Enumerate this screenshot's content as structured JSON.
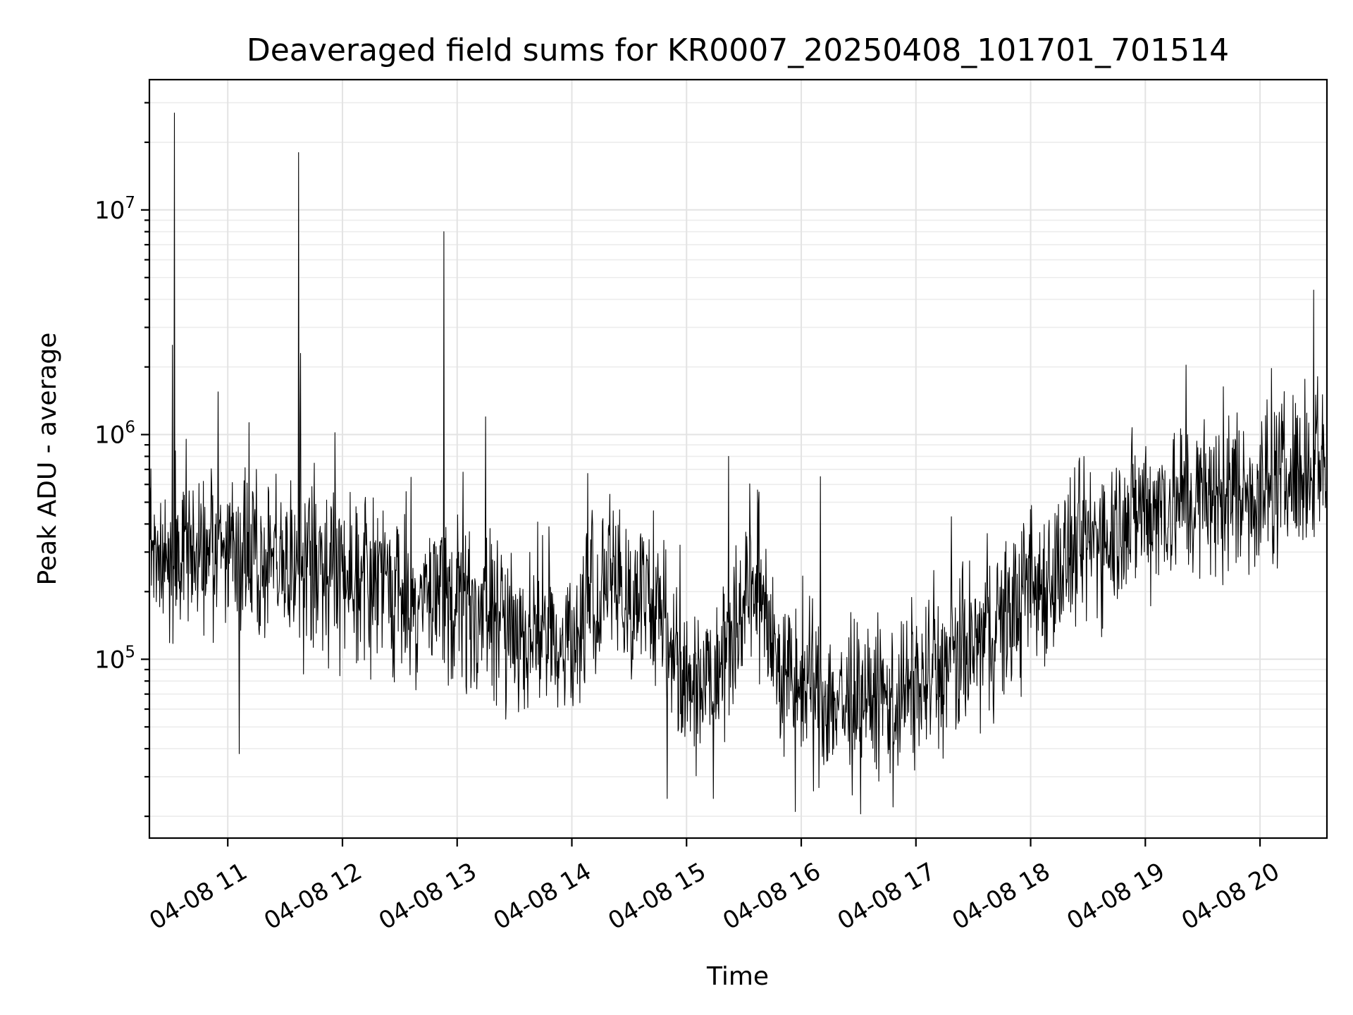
{
  "chart_data": {
    "type": "line",
    "title": "Deaveraged field sums for KR0007_20250408_101701_701514",
    "xlabel": "Time",
    "ylabel": "Peak ADU - average",
    "y_scale": "log",
    "grid": true,
    "grid_minor": true,
    "line_color": "#000000",
    "xlim": [
      "04-08 10:19",
      "04-08 20:35"
    ],
    "ylim": [
      16000,
      38000000
    ],
    "x_ticks": [
      {
        "label": "04-08 11",
        "time": "04-08 11:00"
      },
      {
        "label": "04-08 12",
        "time": "04-08 12:00"
      },
      {
        "label": "04-08 13",
        "time": "04-08 13:00"
      },
      {
        "label": "04-08 14",
        "time": "04-08 14:00"
      },
      {
        "label": "04-08 15",
        "time": "04-08 15:00"
      },
      {
        "label": "04-08 16",
        "time": "04-08 16:00"
      },
      {
        "label": "04-08 17",
        "time": "04-08 17:00"
      },
      {
        "label": "04-08 18",
        "time": "04-08 18:00"
      },
      {
        "label": "04-08 19",
        "time": "04-08 19:00"
      },
      {
        "label": "04-08 20",
        "time": "04-08 20:00"
      }
    ],
    "y_ticks": [
      {
        "base": "10",
        "exp": "5",
        "value": 100000
      },
      {
        "base": "10",
        "exp": "6",
        "value": 1000000
      },
      {
        "base": "10",
        "exp": "7",
        "value": 10000000
      }
    ],
    "baseline": [
      {
        "time": "04-08 10:19",
        "value": 280000
      },
      {
        "time": "04-08 11:00",
        "value": 290000
      },
      {
        "time": "04-08 11:30",
        "value": 250000
      },
      {
        "time": "04-08 12:00",
        "value": 270000
      },
      {
        "time": "04-08 12:30",
        "value": 190000
      },
      {
        "time": "04-08 13:00",
        "value": 170000
      },
      {
        "time": "04-08 13:30",
        "value": 140000
      },
      {
        "time": "04-08 14:00",
        "value": 120000
      },
      {
        "time": "04-08 14:20",
        "value": 230000
      },
      {
        "time": "04-08 14:50",
        "value": 150000
      },
      {
        "time": "04-08 15:00",
        "value": 75000
      },
      {
        "time": "04-08 15:20",
        "value": 110000
      },
      {
        "time": "04-08 15:35",
        "value": 230000
      },
      {
        "time": "04-08 15:50",
        "value": 80000
      },
      {
        "time": "04-08 16:30",
        "value": 60000
      },
      {
        "time": "04-08 17:00",
        "value": 75000
      },
      {
        "time": "04-08 17:30",
        "value": 110000
      },
      {
        "time": "04-08 18:00",
        "value": 200000
      },
      {
        "time": "04-08 18:30",
        "value": 330000
      },
      {
        "time": "04-08 19:00",
        "value": 480000
      },
      {
        "time": "04-08 19:30",
        "value": 520000
      },
      {
        "time": "04-08 20:00",
        "value": 560000
      },
      {
        "time": "04-08 20:35",
        "value": 800000
      }
    ],
    "spikes": [
      {
        "time": "04-08 10:32",
        "value": 27000000
      },
      {
        "time": "04-08 10:31",
        "value": 2500000
      },
      {
        "time": "04-08 11:37",
        "value": 18000000
      },
      {
        "time": "04-08 11:38",
        "value": 2300000
      },
      {
        "time": "04-08 12:53",
        "value": 8000000
      },
      {
        "time": "04-08 13:15",
        "value": 1200000
      },
      {
        "time": "04-08 10:55",
        "value": 1550000
      },
      {
        "time": "04-08 11:11",
        "value": 1130000
      },
      {
        "time": "04-08 11:56",
        "value": 1020000
      },
      {
        "time": "04-08 15:22",
        "value": 800000
      },
      {
        "time": "04-08 16:10",
        "value": 650000
      },
      {
        "time": "04-08 19:48",
        "value": 1250000
      },
      {
        "time": "04-08 20:28",
        "value": 4400000
      },
      {
        "time": "04-08 20:29",
        "value": 1500000
      },
      {
        "time": "04-08 11:06",
        "value": 38000
      },
      {
        "time": "04-08 16:31",
        "value": 20500
      },
      {
        "time": "04-08 15:57",
        "value": 21000
      },
      {
        "time": "04-08 16:48",
        "value": 22000
      },
      {
        "time": "04-08 14:50",
        "value": 24000
      },
      {
        "time": "04-08 15:14",
        "value": 24000
      }
    ]
  }
}
